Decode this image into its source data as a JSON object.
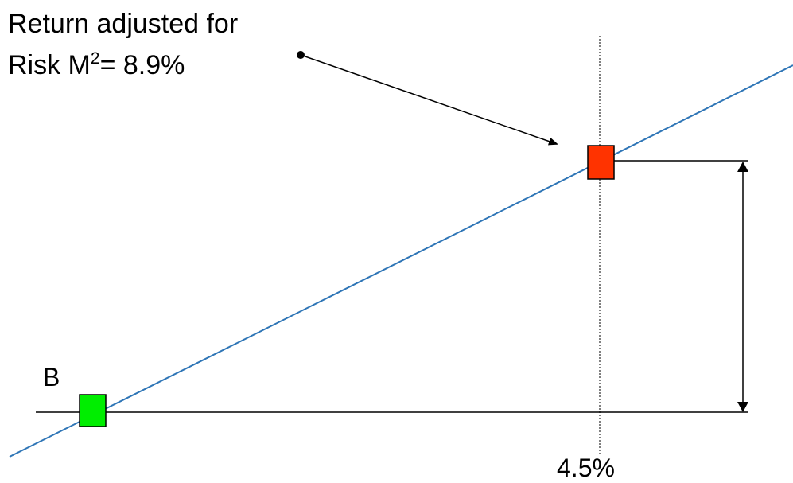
{
  "annotation": {
    "line1": "Return adjusted for",
    "line2_prefix": "Risk M",
    "line2_superscript": "2",
    "line2_suffix": "= 8.9%"
  },
  "point_b_label": "B",
  "x_marker_label": "4.5%",
  "colors": {
    "line": "#2e75b6",
    "point_b_fill": "#00ee00",
    "adjusted_point_fill": "#ff3300",
    "ink": "#000000"
  }
}
